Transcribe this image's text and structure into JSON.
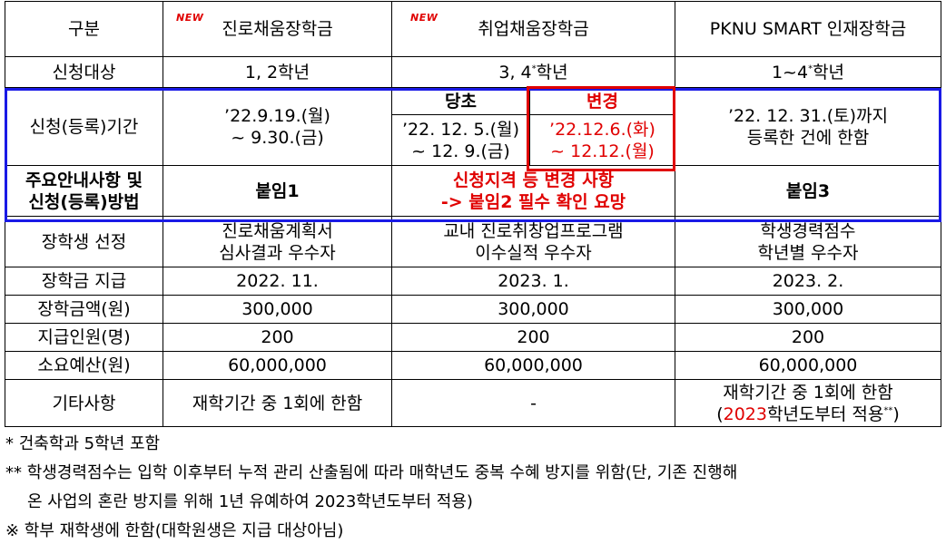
{
  "header": {
    "col0": "구분",
    "col1": "진로채움장학금",
    "col2": "취업채움장학금",
    "col3": "PKNU SMART 인재장학금",
    "new_tag": "NEW"
  },
  "rows": {
    "target": {
      "label": "신청대상",
      "c1": "1, 2학년",
      "c2": "3, 4",
      "c2_sup": "*",
      "c2_suffix": "학년",
      "c3": "1~4",
      "c3_sup": "*",
      "c3_suffix": "학년"
    },
    "period": {
      "label": "신청(등록)기간",
      "c1_line1": "’22.9.19.(월)",
      "c1_line2": "~ 9.30.(금)",
      "c2_original_head": "당초",
      "c2_changed_head": "변경",
      "c2_original_line1": "’22. 12. 5.(월)",
      "c2_original_line2": "~ 12. 9.(금)",
      "c2_changed_line1": "’22.12.6.(화)",
      "c2_changed_line2": "~ 12.12.(월)",
      "c3_line1": "’22. 12. 31.(토)까지",
      "c3_line2": "등록한 건에 한함"
    },
    "guide": {
      "label_line1": "주요안내사항 및",
      "label_line2": "신청(등록)방법",
      "c1": "붙임1",
      "c2_line1": "신청지격 등 변경 사항",
      "c2_line2": "-> 붙임2 필수 확인 요망",
      "c3": "붙임3"
    },
    "selection": {
      "label": "장학생 선정",
      "c1_line1": "진로채움계획서",
      "c1_line2": "심사결과 우수자",
      "c2_line1": "교내 진로취창업프로그램",
      "c2_line2": "이수실적 우수자",
      "c3_line1": "학생경력점수",
      "c3_line2": "학년별 우수자"
    },
    "payment": {
      "label": "장학금 지급",
      "c1": "2022. 11.",
      "c2": "2023. 1.",
      "c3": "2023. 2."
    },
    "amount": {
      "label": "장학금액(원)",
      "c1": "300,000",
      "c2": "300,000",
      "c3": "300,000"
    },
    "count": {
      "label": "지급인원(명)",
      "c1": "200",
      "c2": "200",
      "c3": "200"
    },
    "budget": {
      "label": "소요예산(원)",
      "c1": "60,000,000",
      "c2": "60,000,000",
      "c3": "60,000,000"
    },
    "etc": {
      "label": "기타사항",
      "c1": "재학기간 중 1회에 한함",
      "c2": "-",
      "c3_line1": "재학기간 중 1회에 한함",
      "c3_line2_prefix": "(",
      "c3_line2_year": "2023",
      "c3_line2_rest": "학년도부터 적용",
      "c3_line2_sup": "**",
      "c3_line2_suffix": ")"
    }
  },
  "notes": {
    "n1": "* 건축학과 5학년 포함",
    "n2_line1": "** 학생경력점수는 입학 이후부터 누적 관리 산출됨에 따라 매학년도 중복 수혜 방지를 위함(단, 기존 진행해",
    "n2_line2": "온 사업의 혼란 방지를 위해 1년 유예하여 2023학년도부터 적용)",
    "n3": "※ 학부 재학생에 한함(대학원생은 지급 대상아님)"
  },
  "colors": {
    "blue_box": "#1a1ae6",
    "red": "#e00000"
  }
}
